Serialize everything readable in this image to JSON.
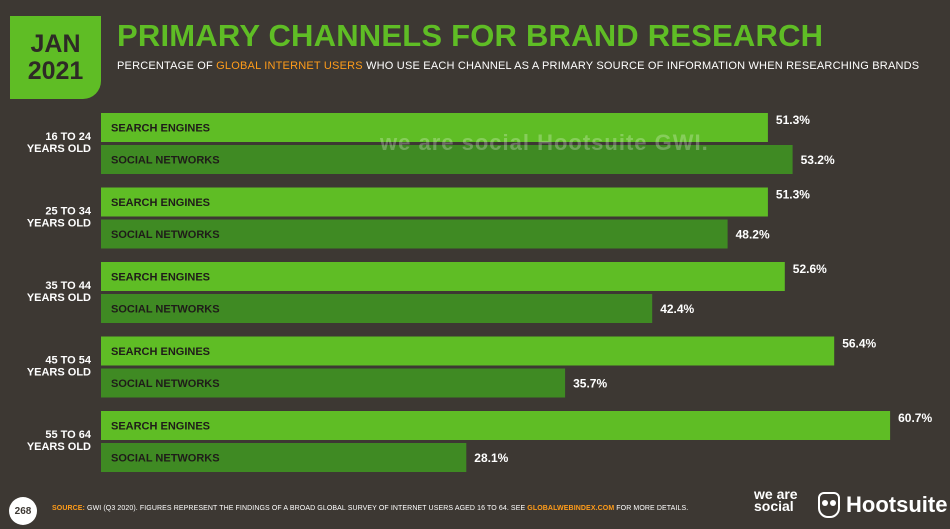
{
  "badge": {
    "month": "JAN",
    "year": "2021"
  },
  "header": {
    "title": "PRIMARY CHANNELS FOR BRAND RESEARCH",
    "subtitle_pre": "PERCENTAGE OF ",
    "subtitle_highlight": "GLOBAL INTERNET USERS",
    "subtitle_post": " WHO USE EACH CHANNEL AS A PRIMARY SOURCE OF INFORMATION WHEN RESEARCHING BRANDS"
  },
  "watermark": "we are social   Hootsuite   GWI.",
  "footer": {
    "page_number": "268",
    "source_label": "SOURCE:",
    "source_text": " GWI (Q3 2020). FIGURES REPRESENT THE FINDINGS OF A BROAD GLOBAL SURVEY OF INTERNET USERS AGED 16 TO 64. SEE ",
    "source_link": "GLOBALWEBINDEX.COM",
    "source_tail": " FOR MORE DETAILS.",
    "logo_was": "we are social",
    "logo_hootsuite": "Hootsuite"
  },
  "colors": {
    "background": "#3d3833",
    "search_engines": "#5fbd25",
    "social_networks": "#3f8a23",
    "accent": "#ff9c1a"
  },
  "chart_data": {
    "type": "bar",
    "orientation": "horizontal",
    "categories": [
      [
        "16 TO 24",
        "YEARS OLD"
      ],
      [
        "25 TO 34",
        "YEARS OLD"
      ],
      [
        "35 TO 44",
        "YEARS OLD"
      ],
      [
        "45 TO 54",
        "YEARS OLD"
      ],
      [
        "55 TO 64",
        "YEARS OLD"
      ]
    ],
    "series": [
      {
        "name": "SEARCH ENGINES",
        "values": [
          51.3,
          51.3,
          52.6,
          56.4,
          60.7
        ]
      },
      {
        "name": "SOCIAL NETWORKS",
        "values": [
          53.2,
          48.2,
          42.4,
          35.7,
          28.1
        ]
      }
    ],
    "value_suffix": "%",
    "xlim": [
      0,
      64
    ],
    "grid": false,
    "legend": "inline bar labels"
  }
}
